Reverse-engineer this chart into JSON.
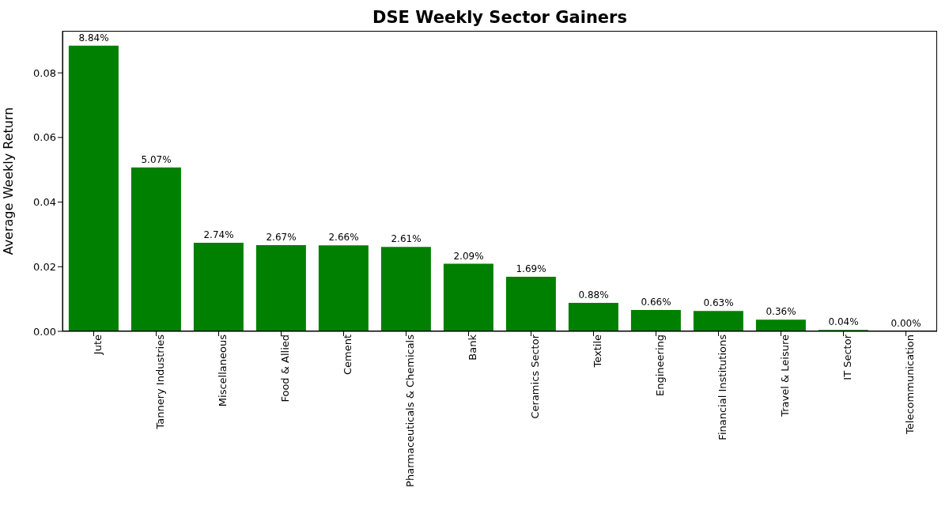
{
  "chart_data": {
    "type": "bar",
    "title": "DSE Weekly Sector Gainers",
    "ylabel": "Average Weekly Return",
    "categories": [
      "Jute",
      "Tannery Industries",
      "Miscellaneous",
      "Food & Allied",
      "Cement",
      "Pharmaceuticals & Chemicals",
      "Bank",
      "Ceramics Sector",
      "Textile",
      "Engineering",
      "Financial Institutions",
      "Travel & Leisure",
      "IT Sector",
      "Telecommunication"
    ],
    "values": [
      0.0884,
      0.0507,
      0.0274,
      0.0267,
      0.0266,
      0.0261,
      0.0209,
      0.0169,
      0.0088,
      0.0066,
      0.0063,
      0.0036,
      0.0004,
      0.0
    ],
    "value_labels": [
      "8.84%",
      "5.07%",
      "2.74%",
      "2.67%",
      "2.66%",
      "2.61%",
      "2.09%",
      "1.69%",
      "0.88%",
      "0.66%",
      "0.63%",
      "0.36%",
      "0.04%",
      "0.00%"
    ],
    "color": "#008000",
    "ylim": [
      0,
      0.093
    ],
    "yticks": [
      {
        "value": 0,
        "label": "0.00"
      },
      0.02,
      0.04,
      0.06,
      0.08
    ]
  }
}
